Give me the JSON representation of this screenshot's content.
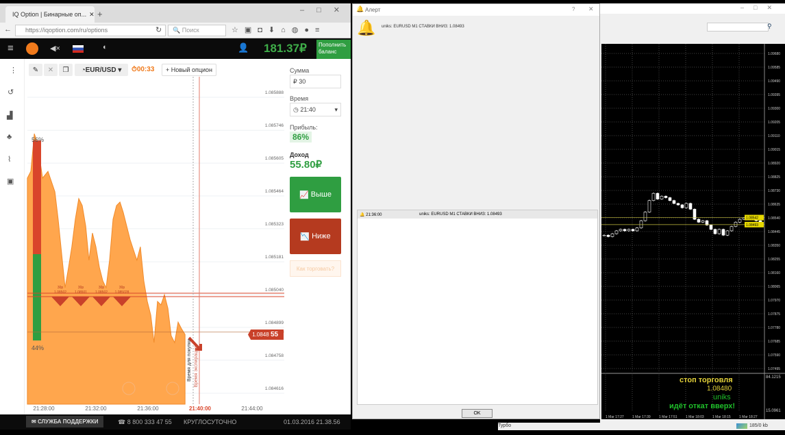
{
  "browser": {
    "tab_title": "IQ Option | Бинарные оп...",
    "url": "https://iqoption.com/ru/options",
    "search_placeholder": "Поиск"
  },
  "iq": {
    "balance": "181.37₽",
    "deposit_label": "Пополнить баланс",
    "toolbar": {
      "asset": "EUR/USD",
      "timer": "00:33",
      "new_option": "+ Новый опцион"
    },
    "panel": {
      "amount_label": "Сумма",
      "amount": "₽ 30",
      "time_label": "Время",
      "time": "21:40",
      "profit_label": "Прибыль:",
      "profit": "86%",
      "income_label": "Доход",
      "income": "55.80₽",
      "up_label": "Выше",
      "down_label": "Ниже",
      "howto_label": "Как торговать?"
    },
    "chart": {
      "type": "area",
      "pct_top": "56%",
      "pct_bottom": "44%",
      "current_price": "1.0848",
      "current_price_tail": "55",
      "y_ticks": [
        "1.085888",
        "1.085746",
        "1.085605",
        "1.085464",
        "1.085323",
        "1.085181",
        "1.085040",
        "1.084899",
        "1.084758",
        "1.084616"
      ],
      "x_ticks": [
        "21:28:00",
        "21:32:00",
        "21:36:00",
        "21:40:00",
        "21:44:00"
      ],
      "expiry_label": "21:40:00",
      "buy_time_label": "Время для покупки",
      "expiry_vert_label": "Время экспирации",
      "deals": [
        {
          "amount": "30р",
          "price": "1.08502"
        },
        {
          "amount": "30р",
          "price": "1.08501"
        },
        {
          "amount": "30р",
          "price": "1.08502"
        },
        {
          "amount": "30р",
          "price": "1.085028"
        }
      ],
      "points": [
        [
          "21:26:44",
          1.085517
        ],
        [
          "21:27:00",
          1.085546
        ],
        [
          "21:27:16",
          1.085708
        ],
        [
          "21:27:32",
          1.085664
        ],
        [
          "21:27:54",
          1.085517
        ],
        [
          "21:28:19",
          1.085546
        ],
        [
          "21:28:51",
          1.085458
        ],
        [
          "21:29:06",
          1.08534
        ],
        [
          "21:29:22",
          1.085193
        ],
        [
          "21:29:38",
          1.085046
        ],
        [
          "21:29:54",
          1.085134
        ],
        [
          "21:30:09",
          1.085222
        ],
        [
          "21:30:25",
          1.08534
        ],
        [
          "21:30:41",
          1.085429
        ],
        [
          "21:30:57",
          1.085399
        ],
        [
          "21:31:13",
          1.085311
        ],
        [
          "21:31:28",
          1.085164
        ],
        [
          "21:31:44",
          1.085281
        ],
        [
          "21:32:00",
          1.085222
        ],
        [
          "21:32:16",
          1.085134
        ],
        [
          "21:32:32",
          1.085075
        ],
        [
          "21:32:47",
          1.085046
        ],
        [
          "21:33:03",
          1.085164
        ],
        [
          "21:33:19",
          1.08534
        ],
        [
          "21:33:35",
          1.085399
        ],
        [
          "21:33:51",
          1.085414
        ],
        [
          "21:34:06",
          1.08537
        ],
        [
          "21:34:22",
          1.085311
        ],
        [
          "21:34:38",
          1.085252
        ],
        [
          "21:35:09",
          1.085164
        ],
        [
          "21:35:25",
          1.085222
        ],
        [
          "21:35:41",
          1.085075
        ],
        [
          "21:35:57",
          1.084987
        ],
        [
          "21:36:13",
          1.084928
        ],
        [
          "21:36:28",
          1.08481
        ],
        [
          "21:36:44",
          1.084987
        ],
        [
          "21:37:00",
          1.084972
        ],
        [
          "21:37:16",
          1.085016
        ],
        [
          "21:37:32",
          1.084957
        ],
        [
          "21:37:47",
          1.08484
        ],
        [
          "21:38:03",
          1.08481
        ],
        [
          "21:38:19",
          1.084898
        ],
        [
          "21:38:35",
          1.084869
        ],
        [
          "21:38:51",
          1.084845
        ]
      ],
      "colors": {
        "area": "#ffa64d",
        "up": "#2f9e41",
        "down": "#b53a1f"
      }
    },
    "footer": {
      "support": "СЛУЖБА ПОДДЕРЖКИ",
      "phone": "8 800 333 47 55",
      "hours": "КРУГЛОСУТОЧНО",
      "datetime": "01.03.2016 21.38.56"
    }
  },
  "alert": {
    "title": "Алерт",
    "help": "?",
    "message": "uniks: EURUSD M1 СТАВКИ ВНИЗ: 1.08493",
    "rows": [
      {
        "time": "21:36:00",
        "text": "uniks: EURUSD M1 СТАВКИ ВНИЗ: 1.08493"
      }
    ],
    "ok_label": "OK"
  },
  "mt4": {
    "y_ticks": [
      "1.09680",
      "1.09585",
      "1.09490",
      "1.09395",
      "1.09300",
      "1.09205",
      "1.09110",
      "1.09015",
      "1.08920",
      "1.08825",
      "1.08730",
      "1.08635",
      "1.08540",
      "1.08445",
      "1.08350",
      "1.08255",
      "1.08160",
      "1.08065",
      "1.07970",
      "1.07875",
      "1.07780",
      "1.07685",
      "1.07590",
      "1.07495"
    ],
    "price_labels": [
      "1.08542",
      "1.08493"
    ],
    "x_ticks": [
      "1 Mar 17:27",
      "1 Mar 17:39",
      "1 Mar 17:51",
      "1 Mar 18:03",
      "1 Mar 18:15",
      "1 Mar 18:27"
    ],
    "closes": [
      1.0842,
      1.0841,
      1.0843,
      1.0845,
      1.0846,
      1.0845,
      1.0846,
      1.0845,
      1.0847,
      1.0852,
      1.0858,
      1.0866,
      1.0871,
      1.0867,
      1.0869,
      1.0868,
      1.0866,
      1.0864,
      1.0863,
      1.0861,
      1.0864,
      1.086,
      1.0853,
      1.0851,
      1.0852,
      1.0849,
      1.0846,
      1.0843,
      1.0846,
      1.0842,
      1.0845,
      1.0848,
      1.0851,
      1.0853,
      1.0854,
      1.0855,
      1.0853,
      1.0852,
      1.0849
    ],
    "indicator_top": "84.1215",
    "indicator_bottom": "15.0961",
    "text_stop": "стоп торговля",
    "text_stop_price": "1.08480",
    "text_name": "uniks",
    "text_signal": "идёт откат вверх!",
    "status": "Турбо",
    "traffic": "185/0 kb"
  }
}
